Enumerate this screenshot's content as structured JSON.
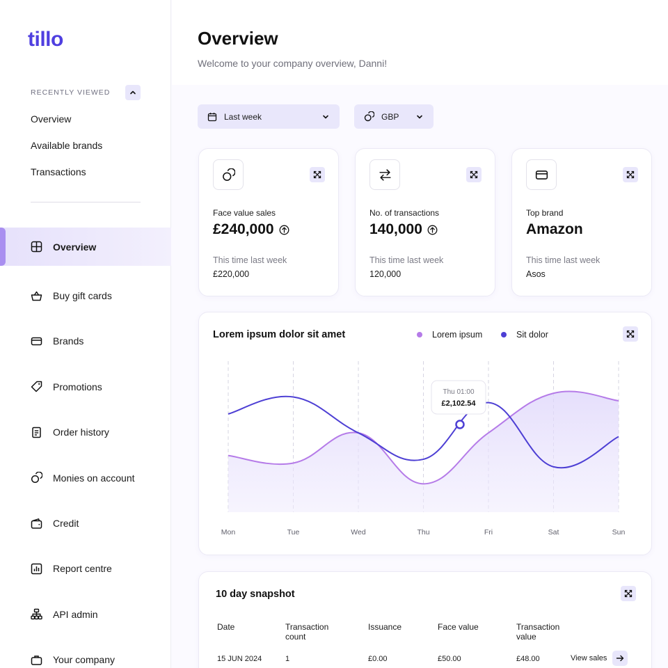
{
  "brand": {
    "logo_text": "tillo",
    "color": "#4f3fe0",
    "accent": "#a98ff0"
  },
  "sidebar": {
    "recent_label": "RECENTLY VIEWED",
    "recent": [
      "Overview",
      "Available brands",
      "Transactions"
    ],
    "nav": [
      {
        "label": "Overview",
        "icon": "grid-icon",
        "active": true
      },
      {
        "label": "Buy gift cards",
        "icon": "basket-icon"
      },
      {
        "label": "Brands",
        "icon": "card-icon"
      },
      {
        "label": "Promotions",
        "icon": "tag-icon"
      },
      {
        "label": "Order history",
        "icon": "document-icon"
      },
      {
        "label": "Monies on account",
        "icon": "coins-icon"
      },
      {
        "label": "Credit",
        "icon": "wallet-icon"
      },
      {
        "label": "Report centre",
        "icon": "report-icon"
      },
      {
        "label": "API admin",
        "icon": "hierarchy-icon"
      },
      {
        "label": "Your company",
        "icon": "briefcase-icon"
      }
    ]
  },
  "header": {
    "title": "Overview",
    "welcome": "Welcome to your company overview, Danni!"
  },
  "filters": {
    "period": "Last week",
    "currency": "GBP"
  },
  "stats": [
    {
      "label": "Face value sales",
      "value": "£240,000",
      "sub": "This time last week",
      "prev": "£220,000",
      "icon": "coins-icon"
    },
    {
      "label": "No. of transactions",
      "value": "140,000",
      "sub": "This time last week",
      "prev": "120,000",
      "icon": "transfer-icon"
    },
    {
      "label": "Top brand",
      "value": "Amazon",
      "sub": "This time last week",
      "prev": "Asos",
      "icon": "card-icon"
    }
  ],
  "chart": {
    "title": "Lorem ipsum dolor sit amet",
    "tooltip": {
      "label": "Thu 01:00",
      "value": "£2,102.54"
    }
  },
  "chart_data": {
    "type": "line",
    "categories": [
      "Mon",
      "Tue",
      "Wed",
      "Thu",
      "Fri",
      "Sat",
      "Sun"
    ],
    "grid": "vertical dashed",
    "legend_position": "top-right",
    "series": [
      {
        "name": "Lorem ipsum",
        "color": "#b57be8",
        "values": [
          3,
          2.6,
          4.2,
          1.5,
          4.2,
          6.3,
          5.9
        ]
      },
      {
        "name": "Sit dolor",
        "color": "#4d3fd4",
        "values": [
          5.2,
          6.1,
          4.2,
          2.8,
          5.8,
          2.4,
          4.0
        ]
      }
    ]
  },
  "snapshot": {
    "title": "10 day snapshot",
    "headers": [
      "Date",
      "Transaction count",
      "Issuance",
      "Face value",
      "Transaction value"
    ],
    "rows": [
      {
        "date": "15 JUN 2024",
        "count": "1",
        "issuance": "£0.00",
        "face": "£50.00",
        "value": "£48.00",
        "action": "View sales"
      }
    ]
  }
}
